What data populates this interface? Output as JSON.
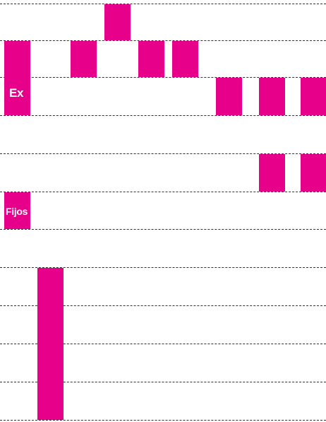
{
  "colors": {
    "accent": "#e6008a",
    "gridline": "#333333",
    "background": "#ffffff"
  },
  "labels": {
    "ex": "Ex",
    "fijos": "Fijos"
  }
}
